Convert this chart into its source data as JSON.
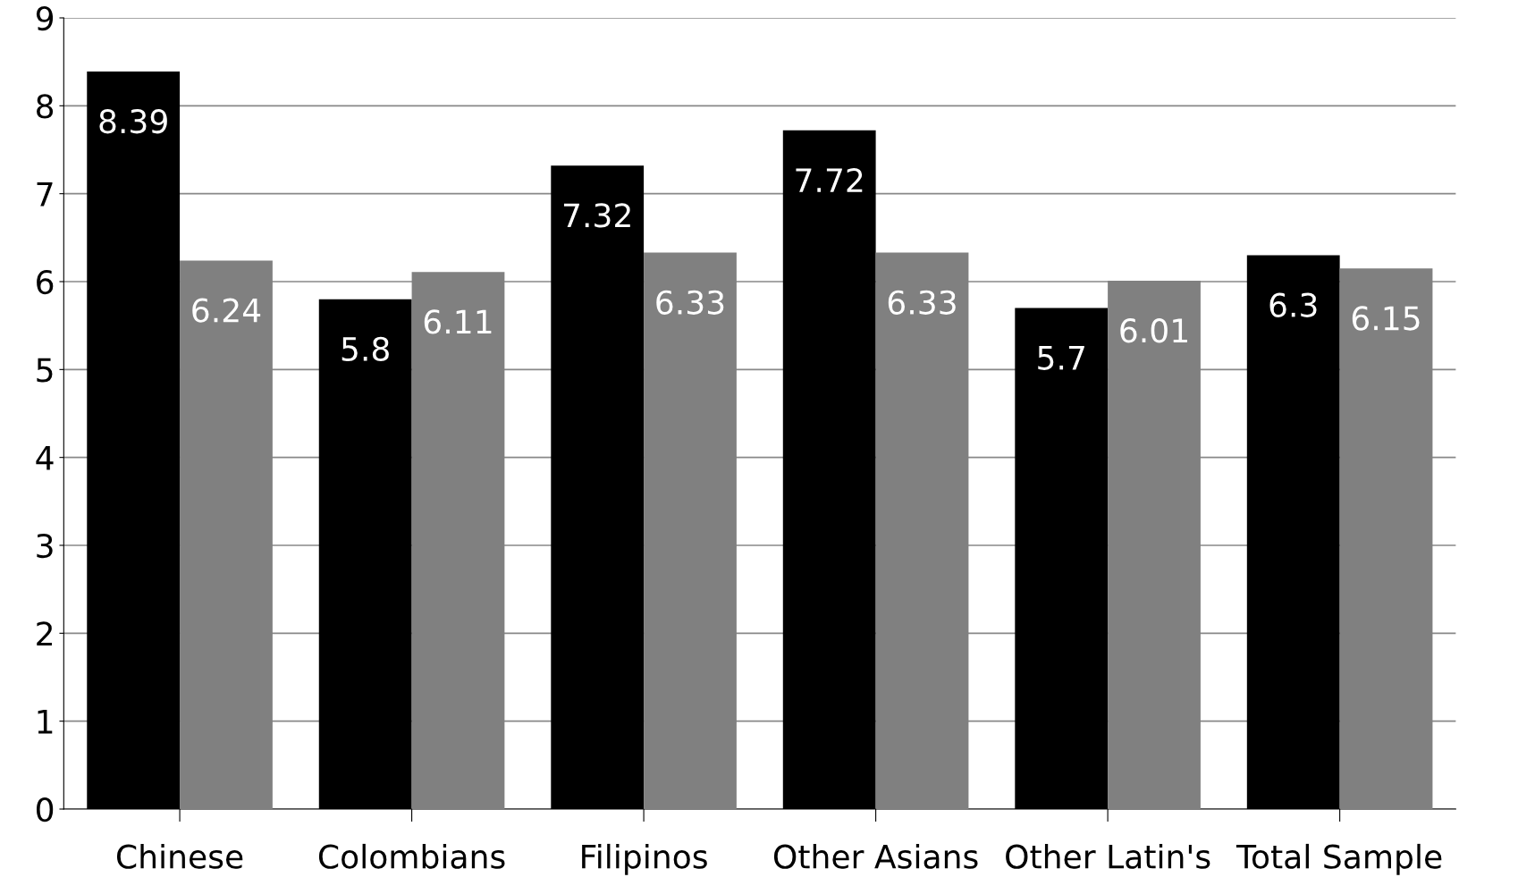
{
  "chart_data": {
    "type": "bar",
    "categories": [
      "Chinese",
      "Colombians",
      "Filipinos",
      "Other Asians",
      "Other Latin's",
      "Total Sample"
    ],
    "series": [
      {
        "color": "#000000",
        "values": [
          8.39,
          5.8,
          7.32,
          7.72,
          5.7,
          6.3
        ]
      },
      {
        "color": "#808080",
        "values": [
          6.24,
          6.11,
          6.33,
          6.33,
          6.01,
          6.15
        ]
      }
    ],
    "ylim": [
      0,
      9
    ],
    "yticks": [
      0,
      1,
      2,
      3,
      4,
      5,
      6,
      7,
      8,
      9
    ],
    "grid": "y",
    "data_labels": true,
    "legend": false
  }
}
